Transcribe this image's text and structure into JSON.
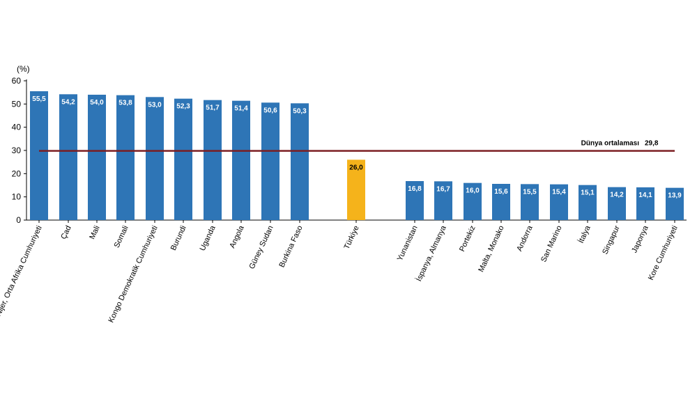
{
  "chart_data": {
    "type": "bar",
    "ylabel": "(%)",
    "ylim": [
      0,
      60
    ],
    "yticks": [
      0,
      10,
      20,
      30,
      40,
      50,
      60
    ],
    "categories": [
      "Nijer, Orta Afrika Cumhuriyeti",
      "Çad",
      "Mali",
      "Somali",
      "Kongo Demokratik Cumhuriyeti",
      "Burundi",
      "Uganda",
      "Angola",
      "Güney Sudan",
      "Burkina Faso",
      "Türkiye",
      "Yunanistan",
      "İspanya, Almanya",
      "Portekiz",
      "Malta, Monako",
      "Andorra",
      "San Marino",
      "İtalya",
      "Singapur",
      "Japonya",
      "Kore Cumhuriyeti"
    ],
    "values": [
      55.5,
      54.2,
      54.0,
      53.8,
      53.0,
      52.3,
      51.7,
      51.4,
      50.6,
      50.3,
      26.0,
      16.8,
      16.7,
      16.0,
      15.6,
      15.5,
      15.4,
      15.1,
      14.2,
      14.1,
      13.9
    ],
    "value_labels": [
      "55,5",
      "54,2",
      "54,0",
      "53,8",
      "53,0",
      "52,3",
      "51,7",
      "51,4",
      "50,6",
      "50,3",
      "26,0",
      "16,8",
      "16,7",
      "16,0",
      "15,6",
      "15,5",
      "15,4",
      "15,1",
      "14,2",
      "14,1",
      "13,9"
    ],
    "highlight_category": "Türkiye",
    "reference_line": {
      "label": "Dünya ortalaması",
      "value": 29.8,
      "value_label": "29,8"
    },
    "colors": {
      "bar": "#2e75b6",
      "highlight": "#f5b31b",
      "reference_line": "#7b1e22",
      "bar_label": "#ffffff",
      "highlight_label": "#000000"
    },
    "grid": false,
    "legend": "none"
  }
}
